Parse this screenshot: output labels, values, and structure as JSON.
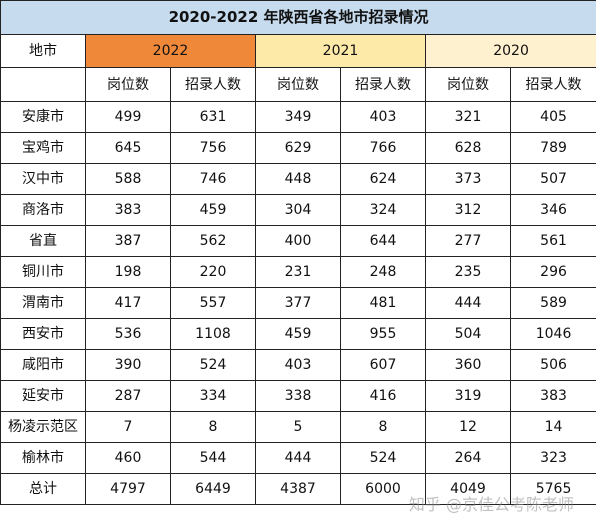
{
  "title": "2020-2022 年陕西省各地市招录情况",
  "header": {
    "city_label": "地市",
    "years": [
      "2022",
      "2021",
      "2020"
    ],
    "sub_labels": [
      "岗位数",
      "招录人数"
    ]
  },
  "rows": [
    {
      "city": "安康市",
      "values": [
        "499",
        "631",
        "349",
        "403",
        "321",
        "405"
      ]
    },
    {
      "city": "宝鸡市",
      "values": [
        "645",
        "756",
        "629",
        "766",
        "628",
        "789"
      ]
    },
    {
      "city": "汉中市",
      "values": [
        "588",
        "746",
        "448",
        "624",
        "373",
        "507"
      ]
    },
    {
      "city": "商洛市",
      "values": [
        "383",
        "459",
        "304",
        "324",
        "312",
        "346"
      ]
    },
    {
      "city": "省直",
      "values": [
        "387",
        "562",
        "400",
        "644",
        "277",
        "561"
      ]
    },
    {
      "city": "铜川市",
      "values": [
        "198",
        "220",
        "231",
        "248",
        "235",
        "296"
      ]
    },
    {
      "city": "渭南市",
      "values": [
        "417",
        "557",
        "377",
        "481",
        "444",
        "589"
      ]
    },
    {
      "city": "西安市",
      "values": [
        "536",
        "1108",
        "459",
        "955",
        "504",
        "1046"
      ]
    },
    {
      "city": "咸阳市",
      "values": [
        "390",
        "524",
        "403",
        "607",
        "360",
        "506"
      ]
    },
    {
      "city": "延安市",
      "values": [
        "287",
        "334",
        "338",
        "416",
        "319",
        "383"
      ]
    },
    {
      "city": "杨凌示范区",
      "values": [
        "7",
        "8",
        "5",
        "8",
        "12",
        "14"
      ]
    },
    {
      "city": "榆林市",
      "values": [
        "460",
        "544",
        "444",
        "524",
        "264",
        "323"
      ]
    },
    {
      "city": "总计",
      "values": [
        "4797",
        "6449",
        "4387",
        "6000",
        "4049",
        "5765"
      ]
    }
  ],
  "watermark": "知乎 @京佳公考陈老师"
}
